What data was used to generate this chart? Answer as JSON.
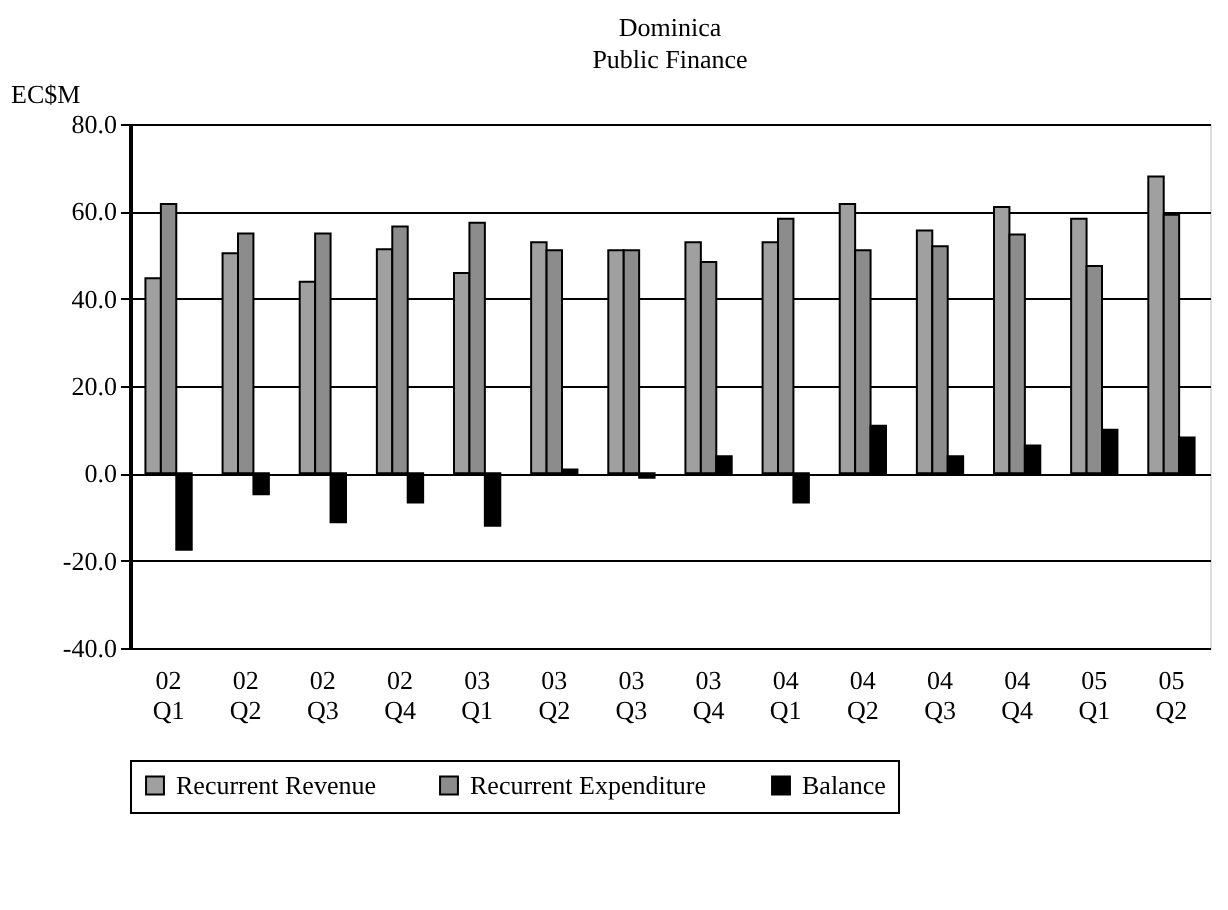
{
  "chart_data": {
    "type": "bar",
    "title": "Dominica",
    "subtitle": "Public Finance",
    "ylabel": "EC$M",
    "categories": [
      "02 Q1",
      "02 Q2",
      "02 Q3",
      "02 Q4",
      "03 Q1",
      "03 Q2",
      "03 Q3",
      "03 Q4",
      "04 Q1",
      "04 Q2",
      "04 Q3",
      "04 Q4",
      "05 Q1",
      "05 Q2"
    ],
    "series": [
      {
        "name": "Recurrent Revenue",
        "color": "#a0a0a0",
        "values": [
          44.7,
          50.4,
          43.9,
          51.3,
          45.9,
          52.9,
          51.1,
          52.9,
          52.9,
          61.7,
          55.6,
          61.0,
          58.3,
          68.0
        ]
      },
      {
        "name": "Recurrent Expenditure",
        "color": "#8c8c8c",
        "values": [
          61.7,
          54.9,
          54.9,
          56.5,
          57.4,
          51.1,
          51.1,
          48.4,
          58.3,
          51.1,
          52.0,
          54.7,
          47.5,
          59.2
        ]
      },
      {
        "name": "Balance",
        "color": "#000000",
        "values": [
          -17.5,
          -4.8,
          -11.2,
          -6.7,
          -12.0,
          0.9,
          -1.0,
          3.9,
          -6.7,
          10.9,
          3.9,
          6.4,
          10.0,
          8.2
        ]
      }
    ],
    "ylim": [
      -40,
      80
    ],
    "yticks": [
      {
        "value": -40,
        "label": "-40.0"
      },
      {
        "value": -20,
        "label": "-20.0"
      },
      {
        "value": 0,
        "label": "0.0"
      },
      {
        "value": 20,
        "label": "20.0"
      },
      {
        "value": 40,
        "label": "40.0"
      },
      {
        "value": 60,
        "label": "60.0"
      },
      {
        "value": 80,
        "label": "80.0"
      }
    ],
    "grid": "y",
    "legend": "bottom"
  }
}
